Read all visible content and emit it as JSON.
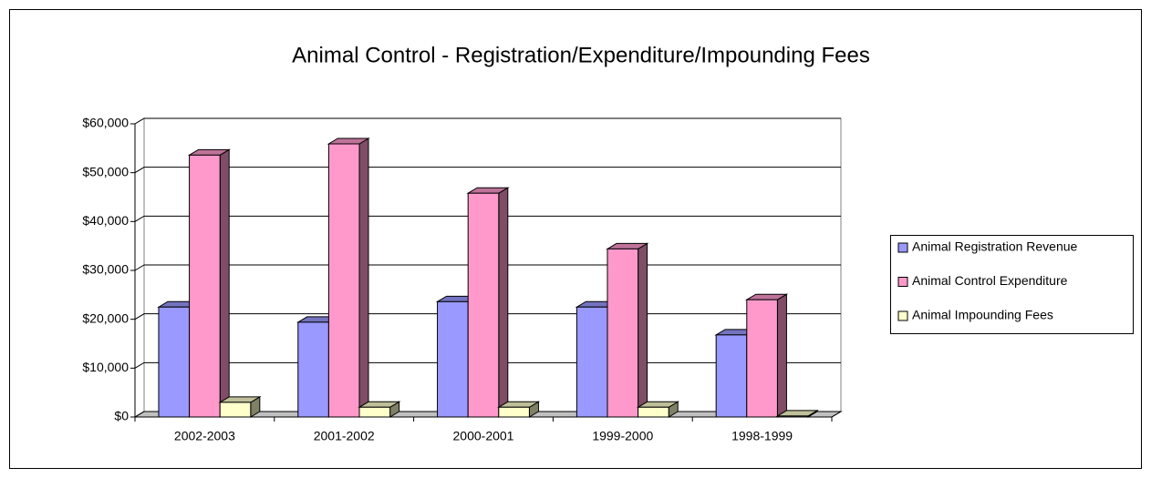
{
  "chart_data": {
    "type": "bar3d",
    "title": "Animal Control - Registration/Expenditure/Impounding Fees",
    "categories": [
      "2002-2003",
      "2001-2002",
      "2000-2001",
      "1999-2000",
      "1998-1999"
    ],
    "series": [
      {
        "name": "Animal Registration Revenue",
        "color": "#9999ff",
        "values": [
          22500,
          19400,
          23600,
          22500,
          16800
        ]
      },
      {
        "name": "Animal Control Expenditure",
        "color": "#ff99cc",
        "values": [
          53600,
          55900,
          45800,
          34400,
          24000
        ]
      },
      {
        "name": "Animal Impounding Fees",
        "color": "#ffffcc",
        "values": [
          3000,
          2000,
          2000,
          2000,
          200
        ]
      }
    ],
    "ylim": [
      0,
      60000
    ],
    "yticks": [
      {
        "value": 0,
        "label": "$0"
      },
      {
        "value": 10000,
        "label": "$10,000"
      },
      {
        "value": 20000,
        "label": "$20,000"
      },
      {
        "value": 30000,
        "label": "$30,000"
      },
      {
        "value": 40000,
        "label": "$40,000"
      },
      {
        "value": 50000,
        "label": "$50,000"
      },
      {
        "value": 60000,
        "label": "$60,000"
      }
    ],
    "grid": true,
    "legend": "right"
  }
}
